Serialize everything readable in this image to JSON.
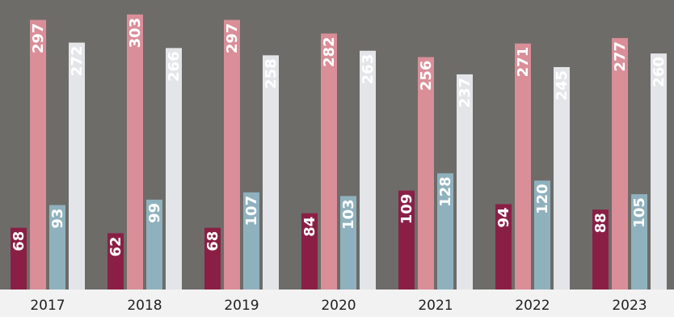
{
  "chart_data": {
    "type": "bar",
    "categories": [
      "2017",
      "2018",
      "2019",
      "2020",
      "2021",
      "2022",
      "2023"
    ],
    "series": [
      {
        "values": [
          68,
          62,
          68,
          84,
          109,
          94,
          88
        ],
        "color": "#8a1f45",
        "label_color": "#ffffff"
      },
      {
        "values": [
          297,
          303,
          297,
          282,
          256,
          271,
          277
        ],
        "color": "#d98e98",
        "label_color": "#ffffff"
      },
      {
        "values": [
          93,
          99,
          107,
          103,
          128,
          120,
          105
        ],
        "color": "#8fb1bd",
        "label_color": "#ffffff"
      },
      {
        "values": [
          272,
          266,
          258,
          263,
          237,
          245,
          260
        ],
        "color": "#e3e5e8",
        "label_color": "#ffffff"
      }
    ],
    "ylim": [
      0,
      310
    ],
    "grid": false,
    "legend": "none",
    "background": "#6d6c69",
    "axis_color": "#f2f2f2",
    "xlabel": "",
    "ylabel": ""
  }
}
